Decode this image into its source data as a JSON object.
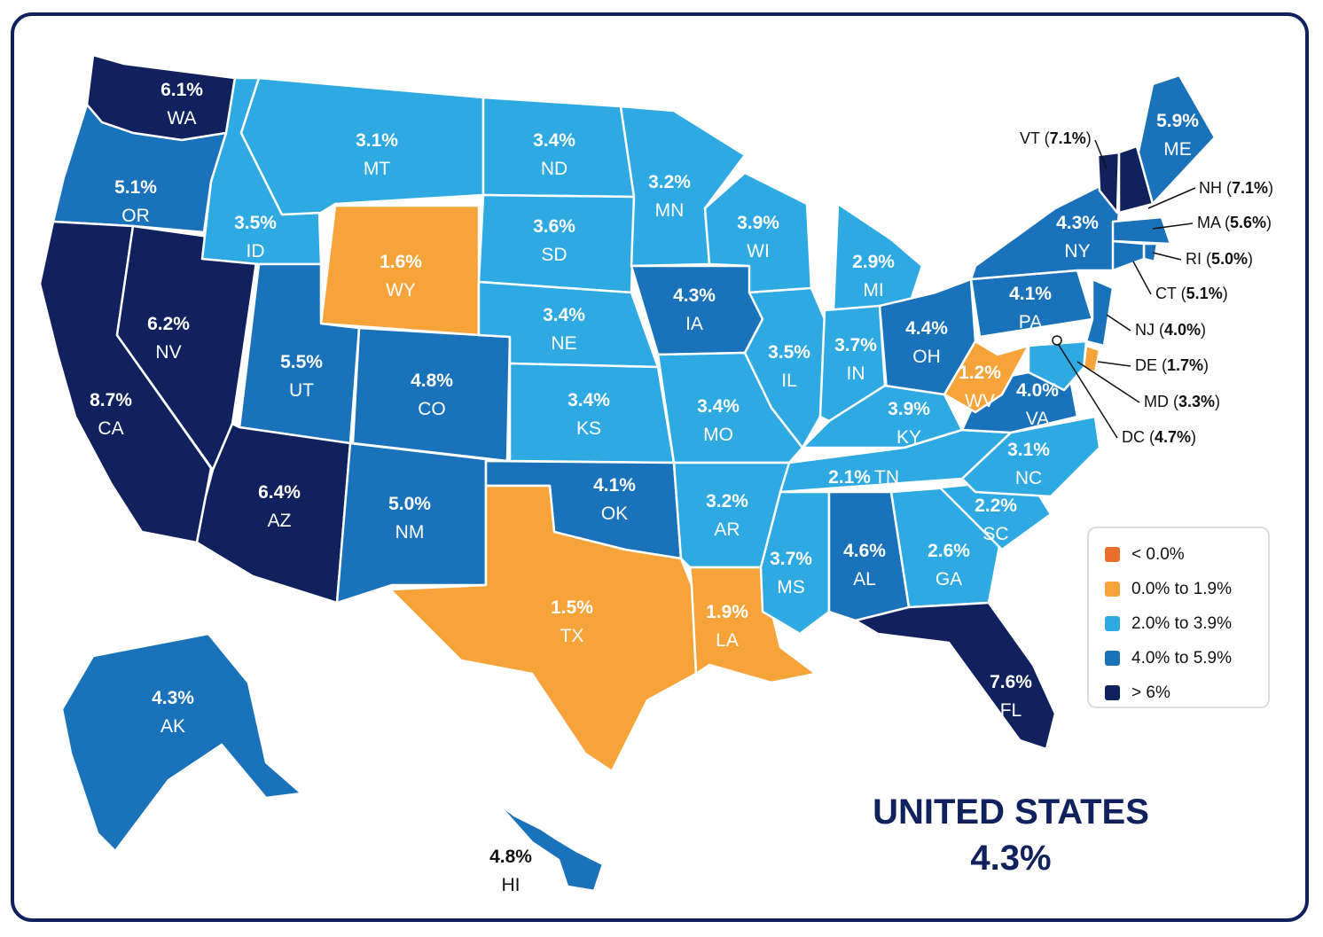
{
  "colors": {
    "below_0": "#e8702a",
    "0_to_1_9": "#f6a33a",
    "2_to_3_9": "#2ea9e2",
    "4_to_5_9": "#1a72bb",
    "above_6": "#10215e",
    "title": "#10215e"
  },
  "legend": [
    {
      "label": "< 0.0%",
      "color": "#e8702a"
    },
    {
      "label": "0.0% to 1.9%",
      "color": "#f6a33a"
    },
    {
      "label": "2.0% to 3.9%",
      "color": "#2ea9e2"
    },
    {
      "label": "4.0% to 5.9%",
      "color": "#1a72bb"
    },
    {
      "label": "> 6%",
      "color": "#10215e"
    }
  ],
  "national": {
    "name": "UNITED STATES",
    "value": "4.3%"
  },
  "states": [
    {
      "code": "WA",
      "value": "6.1%",
      "num": 6.1
    },
    {
      "code": "OR",
      "value": "5.1%",
      "num": 5.1
    },
    {
      "code": "CA",
      "value": "8.7%",
      "num": 8.7
    },
    {
      "code": "NV",
      "value": "6.2%",
      "num": 6.2
    },
    {
      "code": "ID",
      "value": "3.5%",
      "num": 3.5
    },
    {
      "code": "MT",
      "value": "3.1%",
      "num": 3.1
    },
    {
      "code": "WY",
      "value": "1.6%",
      "num": 1.6
    },
    {
      "code": "UT",
      "value": "5.5%",
      "num": 5.5
    },
    {
      "code": "AZ",
      "value": "6.4%",
      "num": 6.4
    },
    {
      "code": "CO",
      "value": "4.8%",
      "num": 4.8
    },
    {
      "code": "NM",
      "value": "5.0%",
      "num": 5.0
    },
    {
      "code": "ND",
      "value": "3.4%",
      "num": 3.4
    },
    {
      "code": "SD",
      "value": "3.6%",
      "num": 3.6
    },
    {
      "code": "NE",
      "value": "3.4%",
      "num": 3.4
    },
    {
      "code": "KS",
      "value": "3.4%",
      "num": 3.4
    },
    {
      "code": "OK",
      "value": "4.1%",
      "num": 4.1
    },
    {
      "code": "TX",
      "value": "1.5%",
      "num": 1.5
    },
    {
      "code": "MN",
      "value": "3.2%",
      "num": 3.2
    },
    {
      "code": "IA",
      "value": "4.3%",
      "num": 4.3
    },
    {
      "code": "MO",
      "value": "3.4%",
      "num": 3.4
    },
    {
      "code": "AR",
      "value": "3.2%",
      "num": 3.2
    },
    {
      "code": "LA",
      "value": "1.9%",
      "num": 1.9
    },
    {
      "code": "WI",
      "value": "3.9%",
      "num": 3.9
    },
    {
      "code": "IL",
      "value": "3.5%",
      "num": 3.5
    },
    {
      "code": "MI",
      "value": "2.9%",
      "num": 2.9
    },
    {
      "code": "IN",
      "value": "3.7%",
      "num": 3.7
    },
    {
      "code": "OH",
      "value": "4.4%",
      "num": 4.4
    },
    {
      "code": "KY",
      "value": "3.9%",
      "num": 3.9
    },
    {
      "code": "TN",
      "value": "2.1%",
      "num": 2.1
    },
    {
      "code": "MS",
      "value": "3.7%",
      "num": 3.7
    },
    {
      "code": "AL",
      "value": "4.6%",
      "num": 4.6
    },
    {
      "code": "GA",
      "value": "2.6%",
      "num": 2.6
    },
    {
      "code": "FL",
      "value": "7.6%",
      "num": 7.6
    },
    {
      "code": "SC",
      "value": "2.2%",
      "num": 2.2
    },
    {
      "code": "NC",
      "value": "3.1%",
      "num": 3.1
    },
    {
      "code": "VA",
      "value": "4.0%",
      "num": 4.0
    },
    {
      "code": "WV",
      "value": "1.2%",
      "num": 1.2
    },
    {
      "code": "PA",
      "value": "4.1%",
      "num": 4.1
    },
    {
      "code": "NY",
      "value": "4.3%",
      "num": 4.3
    },
    {
      "code": "ME",
      "value": "5.9%",
      "num": 5.9
    },
    {
      "code": "VT",
      "value": "7.1%",
      "num": 7.1
    },
    {
      "code": "NH",
      "value": "7.1%",
      "num": 7.1
    },
    {
      "code": "MA",
      "value": "5.6%",
      "num": 5.6
    },
    {
      "code": "RI",
      "value": "5.0%",
      "num": 5.0
    },
    {
      "code": "CT",
      "value": "5.1%",
      "num": 5.1
    },
    {
      "code": "NJ",
      "value": "4.0%",
      "num": 4.0
    },
    {
      "code": "DE",
      "value": "1.7%",
      "num": 1.7
    },
    {
      "code": "MD",
      "value": "3.3%",
      "num": 3.3
    },
    {
      "code": "DC",
      "value": "4.7%",
      "num": 4.7
    },
    {
      "code": "AK",
      "value": "4.3%",
      "num": 4.3
    },
    {
      "code": "HI",
      "value": "4.8%",
      "num": 4.8
    }
  ]
}
